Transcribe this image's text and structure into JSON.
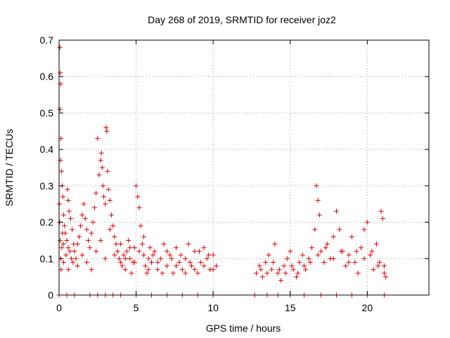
{
  "chart_data": {
    "type": "scatter",
    "title": "Day 268 of 2019, SRMTID for receiver joz2",
    "xlabel": "GPS time / hours",
    "ylabel": "SRMTID / TECUs",
    "xlim": [
      0,
      24
    ],
    "ylim": [
      0,
      0.7
    ],
    "xticks": [
      0,
      5,
      10,
      15,
      20
    ],
    "yticks": [
      0,
      0.1,
      0.2,
      0.3,
      0.4,
      0.5,
      0.6,
      0.7
    ],
    "grid": true,
    "marker": "+",
    "marker_color": "#e00000",
    "series": [
      {
        "name": "SRMTID",
        "points": [
          [
            0.05,
            0.68
          ],
          [
            0.08,
            0.61
          ],
          [
            0.1,
            0.58
          ],
          [
            0.06,
            0.51
          ],
          [
            0.12,
            0.43
          ],
          [
            0.09,
            0.37
          ],
          [
            0.15,
            0.34
          ],
          [
            0.2,
            0.3
          ],
          [
            0.25,
            0.27
          ],
          [
            0.3,
            0.22
          ],
          [
            0.35,
            0.19
          ],
          [
            0.4,
            0.17
          ],
          [
            0.5,
            0.15
          ],
          [
            0.6,
            0.13
          ],
          [
            0.7,
            0.12
          ],
          [
            0.8,
            0.1
          ],
          [
            0.9,
            0.09
          ],
          [
            0.02,
            0.25
          ],
          [
            0.04,
            0.2
          ],
          [
            0.07,
            0.15
          ],
          [
            0.11,
            0.1
          ],
          [
            0.13,
            0.07
          ],
          [
            0.18,
            0.13
          ],
          [
            0.22,
            0.17
          ],
          [
            0.28,
            0.14
          ],
          [
            0.45,
            0.11
          ],
          [
            0.55,
            0.29
          ],
          [
            0.6,
            0.26
          ],
          [
            0.65,
            0.23
          ],
          [
            0.75,
            0.21
          ],
          [
            0.85,
            0.18
          ],
          [
            0.95,
            0.14
          ],
          [
            1.0,
            0.12
          ],
          [
            1.1,
            0.1
          ],
          [
            1.2,
            0.08
          ],
          [
            1.3,
            0.16
          ],
          [
            1.4,
            0.19
          ],
          [
            1.5,
            0.22
          ],
          [
            1.6,
            0.25
          ],
          [
            1.7,
            0.21
          ],
          [
            1.8,
            0.18
          ],
          [
            1.9,
            0.15
          ],
          [
            2.0,
            0.13
          ],
          [
            2.1,
            0.17
          ],
          [
            2.2,
            0.2
          ],
          [
            2.3,
            0.24
          ],
          [
            2.4,
            0.28
          ],
          [
            2.5,
            0.43
          ],
          [
            2.6,
            0.33
          ],
          [
            2.7,
            0.37
          ],
          [
            2.75,
            0.39
          ],
          [
            2.8,
            0.35
          ],
          [
            2.85,
            0.3
          ],
          [
            2.9,
            0.27
          ],
          [
            3.0,
            0.25
          ],
          [
            3.05,
            0.46
          ],
          [
            3.1,
            0.45
          ],
          [
            3.15,
            0.34
          ],
          [
            3.2,
            0.29
          ],
          [
            3.3,
            0.26
          ],
          [
            3.4,
            0.22
          ],
          [
            3.5,
            0.19
          ],
          [
            3.6,
            0.16
          ],
          [
            3.7,
            0.14
          ],
          [
            3.8,
            0.12
          ],
          [
            3.9,
            0.1
          ],
          [
            4.0,
            0.09
          ],
          [
            4.1,
            0.08
          ],
          [
            4.2,
            0.11
          ],
          [
            4.3,
            0.07
          ],
          [
            4.4,
            0.12
          ],
          [
            4.5,
            0.15
          ],
          [
            4.6,
            0.1
          ],
          [
            4.7,
            0.06
          ],
          [
            4.8,
            0.09
          ],
          [
            4.9,
            0.13
          ],
          [
            5.0,
            0.3
          ],
          [
            5.1,
            0.27
          ],
          [
            5.2,
            0.24
          ],
          [
            5.3,
            0.19
          ],
          [
            5.4,
            0.14
          ],
          [
            5.5,
            0.11
          ],
          [
            5.6,
            0.08
          ],
          [
            5.7,
            0.06
          ],
          [
            5.8,
            0.1
          ],
          [
            5.9,
            0.13
          ],
          [
            6.0,
            0.09
          ],
          [
            6.2,
            0.12
          ],
          [
            6.4,
            0.07
          ],
          [
            6.6,
            0.1
          ],
          [
            6.8,
            0.14
          ],
          [
            7.0,
            0.08
          ],
          [
            7.2,
            0.11
          ],
          [
            7.4,
            0.06
          ],
          [
            7.6,
            0.13
          ],
          [
            7.8,
            0.09
          ],
          [
            8.0,
            0.07
          ],
          [
            8.2,
            0.1
          ],
          [
            8.4,
            0.14
          ],
          [
            8.6,
            0.08
          ],
          [
            8.8,
            0.12
          ],
          [
            9.0,
            0.06
          ],
          [
            9.2,
            0.09
          ],
          [
            9.4,
            0.13
          ],
          [
            9.6,
            0.1
          ],
          [
            9.8,
            0.07
          ],
          [
            10.0,
            0.11
          ],
          [
            10.2,
            0.08
          ],
          [
            12.8,
            0.06
          ],
          [
            13.0,
            0.08
          ],
          [
            13.2,
            0.05
          ],
          [
            13.4,
            0.09
          ],
          [
            13.6,
            0.11
          ],
          [
            13.8,
            0.07
          ],
          [
            14.0,
            0.14
          ],
          [
            14.2,
            0.06
          ],
          [
            14.4,
            0.04
          ],
          [
            14.6,
            0.08
          ],
          [
            14.8,
            0.1
          ],
          [
            15.0,
            0.12
          ],
          [
            15.2,
            0.07
          ],
          [
            15.4,
            0.05
          ],
          [
            15.6,
            0.09
          ],
          [
            15.8,
            0.11
          ],
          [
            16.0,
            0.07
          ],
          [
            16.2,
            0.1
          ],
          [
            16.4,
            0.13
          ],
          [
            16.6,
            0.18
          ],
          [
            16.7,
            0.3
          ],
          [
            16.8,
            0.26
          ],
          [
            16.9,
            0.22
          ],
          [
            17.0,
            0.12
          ],
          [
            17.2,
            0.09
          ],
          [
            17.4,
            0.14
          ],
          [
            17.6,
            0.1
          ],
          [
            17.8,
            0.16
          ],
          [
            18.0,
            0.23
          ],
          [
            18.2,
            0.18
          ],
          [
            18.4,
            0.12
          ],
          [
            18.6,
            0.08
          ],
          [
            18.8,
            0.11
          ],
          [
            19.0,
            0.16
          ],
          [
            19.2,
            0.09
          ],
          [
            19.4,
            0.06
          ],
          [
            19.6,
            0.13
          ],
          [
            19.8,
            0.18
          ],
          [
            20.0,
            0.2
          ],
          [
            20.2,
            0.11
          ],
          [
            20.4,
            0.07
          ],
          [
            20.6,
            0.14
          ],
          [
            20.8,
            0.09
          ],
          [
            20.9,
            0.23
          ],
          [
            21.0,
            0.21
          ],
          [
            21.1,
            0.08
          ],
          [
            21.2,
            0.05
          ],
          [
            0.3,
            0.09
          ],
          [
            0.6,
            0.07
          ],
          [
            1.2,
            0.14
          ],
          [
            1.5,
            0.11
          ],
          [
            1.8,
            0.09
          ],
          [
            2.1,
            0.07
          ],
          [
            2.4,
            0.12
          ],
          [
            2.7,
            0.15
          ],
          [
            3.0,
            0.1
          ],
          [
            3.3,
            0.18
          ],
          [
            3.6,
            0.11
          ],
          [
            4.0,
            0.14
          ],
          [
            4.3,
            0.1
          ],
          [
            4.6,
            0.13
          ],
          [
            4.9,
            0.09
          ],
          [
            5.2,
            0.12
          ],
          [
            5.5,
            0.16
          ],
          [
            5.8,
            0.07
          ],
          [
            6.1,
            0.11
          ],
          [
            6.4,
            0.09
          ],
          [
            6.7,
            0.06
          ],
          [
            7.0,
            0.12
          ],
          [
            7.3,
            0.1
          ],
          [
            7.6,
            0.08
          ],
          [
            7.9,
            0.11
          ],
          [
            8.2,
            0.06
          ],
          [
            8.5,
            0.09
          ],
          [
            8.8,
            0.07
          ],
          [
            9.1,
            0.12
          ],
          [
            9.4,
            0.08
          ],
          [
            9.7,
            0.11
          ],
          [
            10.0,
            0.07
          ],
          [
            13.1,
            0.07
          ],
          [
            13.5,
            0.06
          ],
          [
            13.9,
            0.09
          ],
          [
            14.3,
            0.07
          ],
          [
            14.7,
            0.06
          ],
          [
            15.1,
            0.08
          ],
          [
            15.5,
            0.06
          ],
          [
            15.9,
            0.08
          ],
          [
            16.3,
            0.09
          ],
          [
            16.8,
            0.11
          ],
          [
            17.3,
            0.13
          ],
          [
            17.8,
            0.1
          ],
          [
            18.3,
            0.12
          ],
          [
            18.8,
            0.09
          ],
          [
            19.3,
            0.12
          ],
          [
            19.8,
            0.1
          ],
          [
            20.3,
            0.12
          ],
          [
            20.7,
            0.08
          ],
          [
            21.1,
            0.06
          ],
          [
            0.0,
            0.0
          ],
          [
            0.5,
            0.0
          ],
          [
            1.0,
            0.0
          ],
          [
            2.0,
            0.0
          ],
          [
            2.5,
            0.0
          ],
          [
            3.0,
            0.0
          ],
          [
            3.5,
            0.0
          ],
          [
            4.0,
            0.0
          ],
          [
            5.0,
            0.0
          ],
          [
            6.0,
            0.0
          ],
          [
            7.0,
            0.0
          ],
          [
            8.0,
            0.0
          ],
          [
            9.0,
            0.0
          ],
          [
            10.0,
            0.0
          ],
          [
            12.7,
            0.0
          ],
          [
            13.5,
            0.0
          ],
          [
            14.2,
            0.0
          ],
          [
            15.0,
            0.0
          ],
          [
            15.9,
            0.0
          ],
          [
            17.0,
            0.0
          ],
          [
            18.0,
            0.0
          ],
          [
            19.0,
            0.0
          ],
          [
            20.0,
            0.0
          ],
          [
            21.1,
            0.0
          ]
        ]
      }
    ]
  }
}
